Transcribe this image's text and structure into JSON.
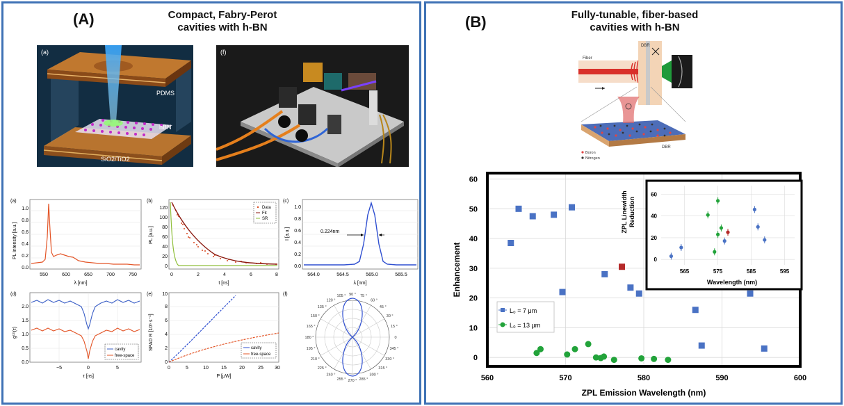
{
  "panel_a": {
    "letter": "(A)",
    "title_line1": "Compact, Fabry-Perot",
    "title_line2": "cavities with h-BN",
    "render_a": {
      "label": "(a)",
      "layer_pdms": "PDMS",
      "layer_hbn": "hBN",
      "layer_substrate": "SiO2/TiO2"
    },
    "render_f": {
      "label": "(f)"
    },
    "subplot_a": {
      "label": "(a)",
      "ylabel": "PL intensity [a.u.]",
      "xlabel": "λ [nm]",
      "xticks": [
        "550",
        "600",
        "650",
        "700",
        "750"
      ],
      "yticks": [
        "0.0",
        "0.2",
        "0.4",
        "0.6",
        "0.8",
        "1.0"
      ]
    },
    "subplot_b": {
      "label": "(b)",
      "ylabel": "PL [a.u.]",
      "xlabel": "t [ns]",
      "xticks": [
        "0",
        "2",
        "4",
        "6",
        "8"
      ],
      "yticks": [
        "0",
        "20",
        "40",
        "60",
        "80",
        "100",
        "120"
      ],
      "legend": [
        "Data",
        "Fit",
        "SR"
      ]
    },
    "subplot_c": {
      "label": "(c)",
      "ylabel": "I [a.u.]",
      "xlabel": "λ [nm]",
      "xticks": [
        "564.0",
        "564.5",
        "565.0",
        "565.5"
      ],
      "yticks": [
        "0.0",
        "0.2",
        "0.4",
        "0.6",
        "0.8",
        "1.0"
      ],
      "annotation": "0.224nm"
    },
    "subplot_d": {
      "label": "(d)",
      "ylabel": "g⁽²⁾(τ)",
      "xlabel": "τ [ns]",
      "xticks": [
        "−5",
        "0",
        "5"
      ],
      "yticks": [
        "0.0",
        "0.5",
        "1.0",
        "1.5",
        "2.0"
      ],
      "legend": [
        "cavity",
        "free-space"
      ]
    },
    "subplot_e": {
      "label": "(e)",
      "ylabel": "SPAD R [10⁶ s⁻¹]",
      "xlabel": "P [μW]",
      "xticks": [
        "0",
        "5",
        "10",
        "15",
        "20",
        "25",
        "30"
      ],
      "yticks": [
        "0",
        "2",
        "4",
        "6",
        "8",
        "10"
      ],
      "legend": [
        "cavity",
        "free-space"
      ]
    },
    "subplot_f": {
      "label": "(f)",
      "angle_labels": [
        "90 °",
        "75 °",
        "60 °",
        "45 °",
        "30 °",
        "15 °",
        "0",
        "345 °",
        "330 °",
        "315 °",
        "300 °",
        "285 °",
        "270 °",
        "255 °",
        "240 °",
        "225 °",
        "210 °",
        "195 °",
        "180 °",
        "165 °",
        "150 °",
        "135 °",
        "120 °",
        "105 °"
      ]
    }
  },
  "panel_b": {
    "letter": "(B)",
    "title_line1": "Fully-tunable,  fiber-based",
    "title_line2": "cavities with h-BN",
    "schematic": {
      "fiber": "Fiber",
      "dbr_top": "DBR",
      "dbr_bottom": "DBR",
      "legend_boron": "Boron",
      "legend_nitrogen": "Nitrogen"
    },
    "colors": {
      "blue_series": "#4a72c4",
      "green_series": "#22a33a",
      "red_point": "#b52a2a",
      "panel_border": "#3f72b5"
    },
    "inset": {
      "ylabel_line1": "ZPL Linewidth",
      "ylabel_line2": "Reduction",
      "xlabel": "Wavelength (nm)",
      "xticks": [
        "565",
        "575",
        "585",
        "595"
      ],
      "yticks": [
        "0",
        "20",
        "40",
        "60"
      ]
    }
  },
  "chart_data": {
    "type": "scatter",
    "xlabel": "ZPL Emission Wavelength (nm)",
    "ylabel": "Enhancement",
    "xlim": [
      560,
      600
    ],
    "ylim": [
      -3,
      62
    ],
    "xticks": [
      "560",
      "570",
      "580",
      "590",
      "600"
    ],
    "yticks": [
      "0",
      "10",
      "20",
      "30",
      "40",
      "50",
      "60"
    ],
    "legend": [
      "L₀ = 7 μm",
      "L₀ = 13 μm"
    ],
    "grid": true,
    "series": [
      {
        "name": "L₀ = 7 μm",
        "marker": "square",
        "color": "#4a72c4",
        "points": [
          [
            563.0,
            38.5
          ],
          [
            564.0,
            50
          ],
          [
            565.8,
            47.5
          ],
          [
            568.5,
            48
          ],
          [
            570.8,
            50.5
          ],
          [
            569.6,
            22
          ],
          [
            575.0,
            28
          ],
          [
            578.3,
            23.5
          ],
          [
            579.4,
            21.5
          ],
          [
            586.6,
            16
          ],
          [
            587.4,
            4
          ],
          [
            593.6,
            21.5
          ],
          [
            595.4,
            3
          ]
        ]
      },
      {
        "name": "L₀ = 13 μm",
        "marker": "circle",
        "color": "#22a33a",
        "points": [
          [
            566.3,
            1.5
          ],
          [
            566.8,
            2.8
          ],
          [
            570.2,
            1
          ],
          [
            571.2,
            2.8
          ],
          [
            572.9,
            4.5
          ],
          [
            573.9,
            0
          ],
          [
            574.5,
            -0.2
          ],
          [
            574.9,
            0.3
          ],
          [
            576.2,
            -0.8
          ],
          [
            579.7,
            -0.3
          ],
          [
            581.3,
            -0.5
          ],
          [
            583.1,
            -0.8
          ]
        ]
      },
      {
        "name": "",
        "marker": "square",
        "color": "#b52a2a",
        "points": [
          [
            577.2,
            30.5
          ]
        ]
      }
    ],
    "inset_series": [
      {
        "name": "L₀ = 7 μm",
        "color": "#4a72c4",
        "points": [
          [
            561,
            3
          ],
          [
            564,
            11
          ],
          [
            577,
            17
          ],
          [
            586,
            46
          ],
          [
            587,
            30
          ],
          [
            589,
            18
          ]
        ]
      },
      {
        "name": "L₀ = 13 μm",
        "color": "#22a33a",
        "points": [
          [
            572,
            41
          ],
          [
            574,
            7
          ],
          [
            575,
            54
          ],
          [
            575,
            23
          ],
          [
            576,
            29
          ]
        ]
      },
      {
        "name": "",
        "color": "#b52a2a",
        "points": [
          [
            578,
            25
          ]
        ]
      }
    ],
    "inset_xlim": [
      558,
      598
    ],
    "inset_ylim": [
      -5,
      68
    ]
  }
}
